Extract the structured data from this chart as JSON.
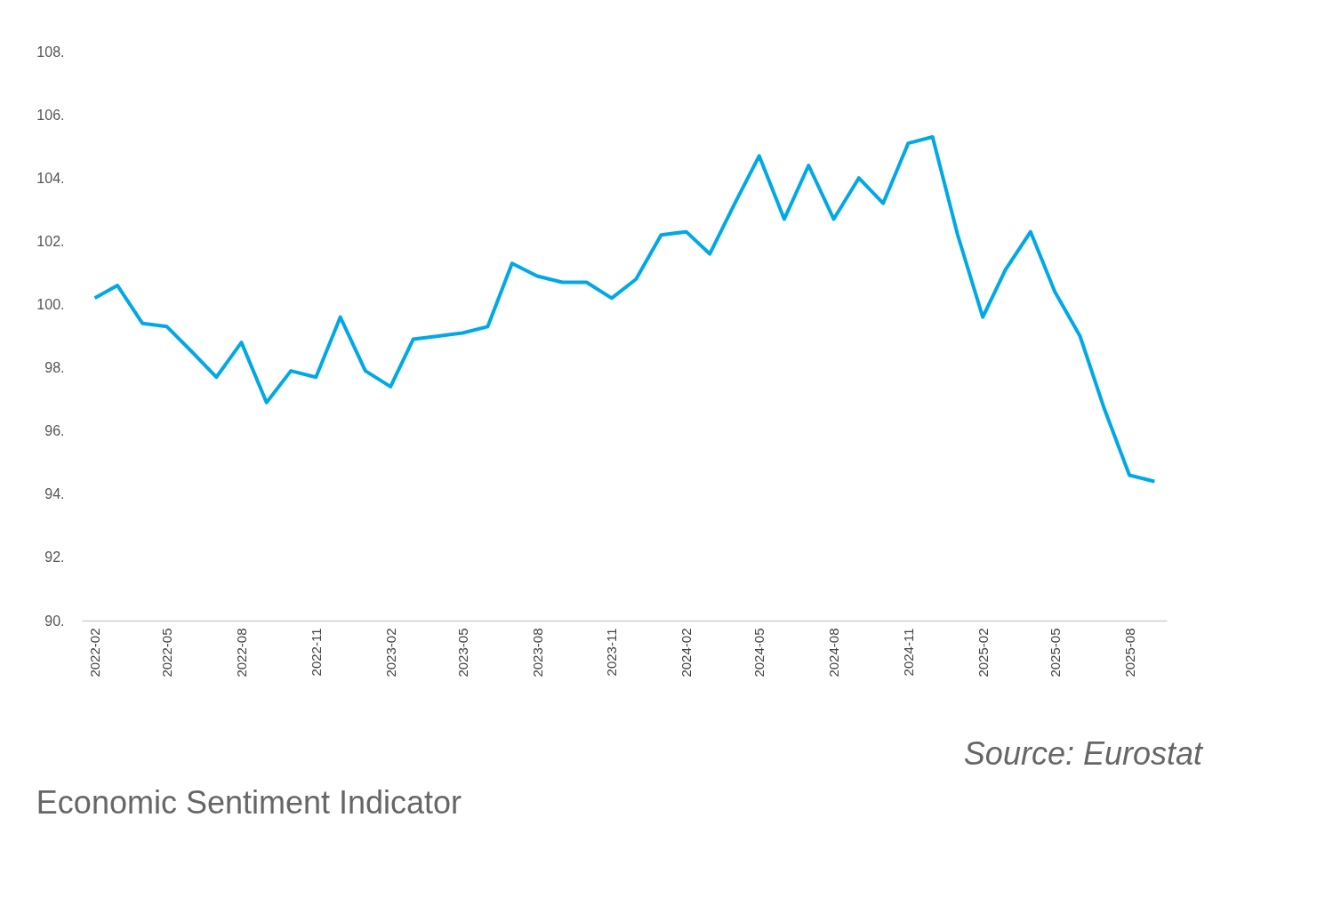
{
  "chart_data": {
    "type": "line",
    "title": "Economic Sentiment Indicator",
    "annotations": [
      "Source: Eurostat"
    ],
    "x": [
      "2022-02",
      "2022-03",
      "2022-04",
      "2022-05",
      "2022-06",
      "2022-07",
      "2022-08",
      "2022-09",
      "2022-10",
      "2022-11",
      "2022-12",
      "2023-01",
      "2023-02",
      "2023-03",
      "2023-04",
      "2023-05",
      "2023-06",
      "2023-07",
      "2023-08",
      "2023-09",
      "2023-10",
      "2023-11",
      "2023-12",
      "2024-01",
      "2024-02",
      "2024-03",
      "2024-04",
      "2024-05",
      "2024-06",
      "2024-07",
      "2024-08",
      "2024-09",
      "2024-10",
      "2024-11",
      "2024-12",
      "2025-01",
      "2025-02",
      "2025-03",
      "2025-04",
      "2025-05",
      "2025-06",
      "2025-07",
      "2025-08",
      "2025-09"
    ],
    "series": [
      {
        "color": "#00a9e6",
        "values": [
          100.2,
          100.6,
          99.4,
          99.3,
          98.5,
          97.7,
          98.8,
          96.9,
          97.9,
          97.7,
          99.6,
          97.9,
          97.4,
          98.9,
          99.0,
          99.1,
          99.3,
          101.3,
          100.9,
          100.7,
          100.7,
          100.2,
          100.8,
          102.2,
          102.3,
          101.6,
          103.2,
          104.7,
          102.7,
          104.4,
          102.7,
          104.0,
          103.2,
          105.1,
          105.3,
          102.2,
          99.6,
          101.1,
          102.3,
          100.4,
          99.0,
          96.7,
          94.6,
          94.4
        ]
      }
    ],
    "xlim": [
      "2022-01-16",
      "2025-09-16"
    ],
    "xticks": [
      "2022-02",
      "2022-05",
      "2022-08",
      "2022-11",
      "2023-02",
      "2023-05",
      "2023-08",
      "2023-11",
      "2024-02",
      "2024-05",
      "2024-08",
      "2024-11",
      "2025-02",
      "2025-05",
      "2025-08"
    ],
    "ylim": [
      90,
      108
    ],
    "yticks": [
      {
        "value": 90,
        "label": "90."
      },
      {
        "value": 92,
        "label": "92."
      },
      {
        "value": 94,
        "label": "94."
      },
      {
        "value": 96,
        "label": "96."
      },
      {
        "value": 98,
        "label": "98."
      },
      {
        "value": 100,
        "label": "100."
      },
      {
        "value": 102,
        "label": "102."
      },
      {
        "value": 104,
        "label": "104."
      },
      {
        "value": 106,
        "label": "106."
      },
      {
        "value": 108,
        "label": "108."
      }
    ],
    "grid": false,
    "legend": false,
    "marker": "none",
    "line_style": "solid"
  }
}
